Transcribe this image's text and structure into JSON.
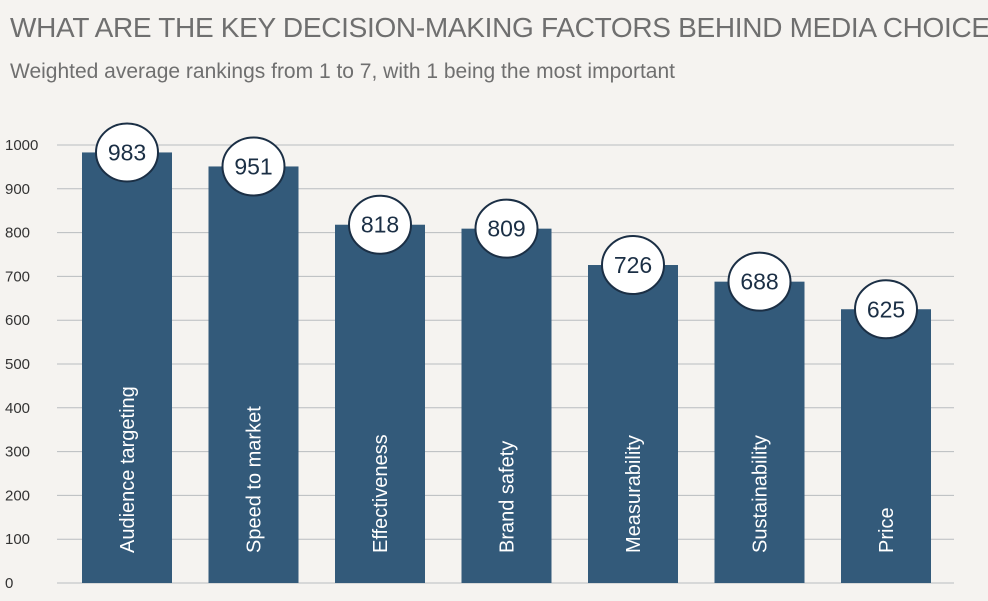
{
  "header": {
    "title": "WHAT ARE THE KEY DECISION-MAKING FACTORS BEHIND MEDIA CHOICE?",
    "subtitle": "Weighted average rankings from 1 to 7,  with 1 being the most important"
  },
  "colors": {
    "bar": "#335a7a",
    "grid": "#b9bcbf",
    "badge_fill": "#ffffff",
    "badge_stroke": "#1b2f45"
  },
  "chart_data": {
    "type": "bar",
    "title": "WHAT ARE THE KEY DECISION-MAKING FACTORS BEHIND MEDIA CHOICE?",
    "subtitle": "Weighted average rankings from 1 to 7,  with 1 being the most important",
    "categories": [
      "Audience targeting",
      "Speed to market",
      "Effectiveness",
      "Brand safety",
      "Measurability",
      "Sustainability",
      "Price"
    ],
    "values": [
      983,
      951,
      818,
      809,
      726,
      688,
      625
    ],
    "ylim": [
      0,
      1000
    ],
    "yticks": [
      0,
      100,
      200,
      300,
      400,
      500,
      600,
      700,
      800,
      900,
      1000
    ],
    "grid": true,
    "data_labels": true,
    "category_labels_inside_bars": true
  }
}
